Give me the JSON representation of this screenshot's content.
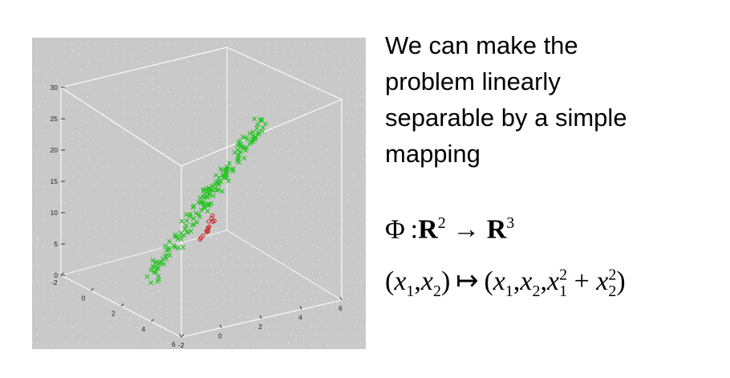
{
  "slide_text": {
    "lines": [
      "We can make the",
      "problem linearly",
      "separable by a simple",
      "mapping"
    ]
  },
  "formula": {
    "mapping_line": {
      "phi": "Φ",
      "colon": ":",
      "domain": "R",
      "domain_exp": "2",
      "arrow": "→",
      "codomain": "R",
      "codomain_exp": "3"
    },
    "maps_line": {
      "lparen": "(",
      "x": "x",
      "sub1": "1",
      "comma": ",",
      "sub2": "2",
      "rparen": ")",
      "mapsto": "↦",
      "sq": "2",
      "plus": "+"
    }
  },
  "plot": {
    "background": "#c9c9c9",
    "axis_color": "#ffffff",
    "z_ticks": [
      "30",
      "25",
      "20",
      "15",
      "10",
      "5",
      "0"
    ],
    "x_ticks": [
      "-2",
      "0",
      "2",
      "4",
      "6"
    ],
    "y_ticks": [
      "-2",
      "0",
      "2",
      "4",
      "6"
    ],
    "series": [
      {
        "marker": "x",
        "color": "#22c31e"
      },
      {
        "marker": "o",
        "color": "#c41e1e"
      }
    ]
  }
}
